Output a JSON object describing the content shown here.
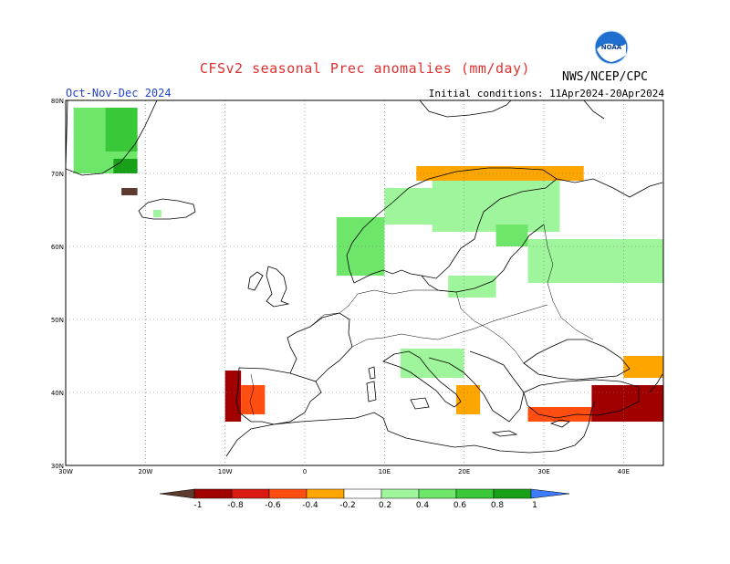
{
  "header": {
    "title": "CFSv2 seasonal Prec anomalies (mm/day)",
    "period": "Oct-Nov-Dec 2024",
    "initial_conditions": "Initial conditions: 11Apr2024-20Apr2024",
    "agency": "NWS/NCEP/CPC",
    "logo_icon": "noaa-logo-icon",
    "logo_text": "NOAA"
  },
  "map": {
    "lon_range": [
      -30,
      45
    ],
    "lat_range": [
      30,
      80
    ],
    "lat_labels": [
      "80N",
      "70N",
      "60N",
      "50N",
      "40N",
      "30N"
    ],
    "lon_labels": [
      "30W",
      "20W",
      "10W",
      "0",
      "10E",
      "20E",
      "30E",
      "40E"
    ],
    "grid": "dotted"
  },
  "legend": {
    "tick_labels": [
      "-1",
      "-0.8",
      "-0.6",
      "-0.4",
      "-0.2",
      "0.2",
      "0.4",
      "0.6",
      "0.8",
      "1"
    ],
    "colors": [
      "#5c3a2e",
      "#a00000",
      "#d81a10",
      "#ff4e10",
      "#ffa500",
      "#ffffff",
      "#9ff59b",
      "#6ee66a",
      "#38c838",
      "#18a018",
      "#3d7bff"
    ]
  },
  "chart_data": {
    "type": "heatmap",
    "title": "CFSv2 seasonal Prec anomalies (mm/day)",
    "units": "mm/day",
    "regions": [
      {
        "lon": [
          -29,
          -21
        ],
        "lat": [
          70,
          79
        ],
        "value": 0.4
      },
      {
        "lon": [
          -25,
          -21
        ],
        "lat": [
          73,
          79
        ],
        "value": 0.6
      },
      {
        "lon": [
          -24,
          -21
        ],
        "lat": [
          70,
          72
        ],
        "value": 0.8
      },
      {
        "lon": [
          -23,
          -21
        ],
        "lat": [
          67,
          68
        ],
        "value": -1
      },
      {
        "lon": [
          -19,
          -18
        ],
        "lat": [
          64,
          65
        ],
        "value": 0.2
      },
      {
        "lon": [
          5,
          8
        ],
        "lat": [
          58,
          62
        ],
        "value": 0.8
      },
      {
        "lon": [
          4,
          10
        ],
        "lat": [
          56,
          64
        ],
        "value": 0.4
      },
      {
        "lon": [
          10,
          20
        ],
        "lat": [
          63,
          68
        ],
        "value": 0.2
      },
      {
        "lon": [
          16,
          32
        ],
        "lat": [
          62,
          70
        ],
        "value": 0.2
      },
      {
        "lon": [
          24,
          28
        ],
        "lat": [
          60,
          63
        ],
        "value": 0.4
      },
      {
        "lon": [
          28,
          45
        ],
        "lat": [
          55,
          61
        ],
        "value": 0.2
      },
      {
        "lon": [
          18,
          24
        ],
        "lat": [
          53,
          56
        ],
        "value": 0.2
      },
      {
        "lon": [
          14,
          35
        ],
        "lat": [
          69,
          71
        ],
        "value": -0.3
      },
      {
        "lon": [
          -10,
          -8
        ],
        "lat": [
          36,
          43
        ],
        "value": -0.9
      },
      {
        "lon": [
          -8,
          -5
        ],
        "lat": [
          37,
          41
        ],
        "value": -0.4
      },
      {
        "lon": [
          28,
          45
        ],
        "lat": [
          36,
          38
        ],
        "value": -0.4
      },
      {
        "lon": [
          36,
          45
        ],
        "lat": [
          36,
          41
        ],
        "value": -0.8
      },
      {
        "lon": [
          40,
          45
        ],
        "lat": [
          42,
          45
        ],
        "value": -0.3
      },
      {
        "lon": [
          19,
          22
        ],
        "lat": [
          37,
          41
        ],
        "value": -0.3
      },
      {
        "lon": [
          12,
          20
        ],
        "lat": [
          42,
          46
        ],
        "value": 0.2
      }
    ]
  }
}
